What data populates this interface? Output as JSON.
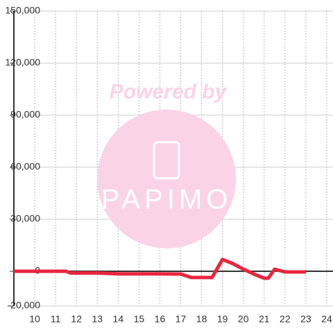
{
  "chart_data": {
    "type": "line",
    "watermark": {
      "top": "Powered by",
      "logo": "PAPIMO"
    },
    "x": [
      9,
      11.5,
      11.7,
      13,
      14,
      16,
      17,
      17.5,
      18.5,
      19,
      19.5,
      20,
      20.5,
      21,
      21.2,
      21.5,
      22,
      23
    ],
    "series": [
      {
        "color": "#e8263f",
        "values": [
          0,
          0,
          -1000,
          -1000,
          -1500,
          -1500,
          -1600,
          -3600,
          -3600,
          6800,
          4400,
          1200,
          -1600,
          -4000,
          -4000,
          1200,
          -400,
          -400
        ]
      }
    ],
    "xlim": [
      9,
      24.3
    ],
    "ylim": [
      -20000,
      150000
    ],
    "xticks": [
      10,
      11,
      12,
      13,
      14,
      15,
      16,
      17,
      18,
      19,
      20,
      21,
      22,
      23,
      24
    ],
    "yticks": [
      {
        "value": -20000,
        "label": "-20,000"
      },
      0,
      {
        "value": 30000,
        "label": "30,000"
      },
      {
        "value": 60000,
        "label": "60,000"
      },
      {
        "value": 90000,
        "label": "90,000"
      },
      {
        "value": 120000,
        "label": "120,000"
      },
      {
        "value": 150000,
        "label": "150,000"
      }
    ],
    "grid": true
  }
}
